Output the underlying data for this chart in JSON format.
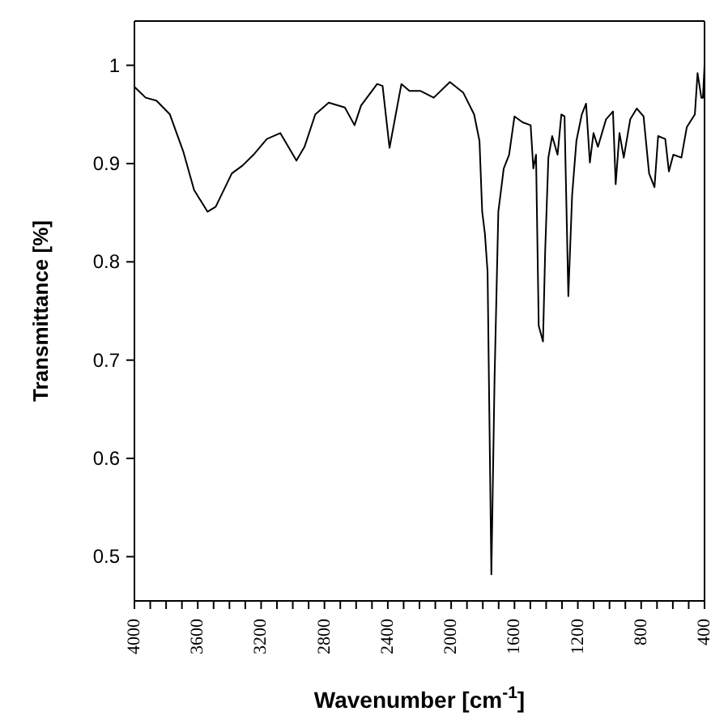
{
  "chart_data": {
    "type": "line",
    "xlabel": "Wavenumber [cm$^{-1}$]",
    "ylabel": "Transmittance [%]",
    "xlim": [
      4000,
      400
    ],
    "ylim": [
      0.455,
      1.045
    ],
    "xticks": [
      4000,
      {
        "value": 3900,
        "label": null
      },
      {
        "value": 3800,
        "label": null
      },
      {
        "value": 3700,
        "label": null
      },
      3600,
      {
        "value": 3500,
        "label": null
      },
      {
        "value": 3400,
        "label": null
      },
      {
        "value": 3300,
        "label": null
      },
      3200,
      {
        "value": 3100,
        "label": null
      },
      {
        "value": 3000,
        "label": null
      },
      {
        "value": 2900,
        "label": null
      },
      2800,
      {
        "value": 2700,
        "label": null
      },
      {
        "value": 2600,
        "label": null
      },
      {
        "value": 2500,
        "label": null
      },
      2400,
      {
        "value": 2300,
        "label": null
      },
      {
        "value": 2200,
        "label": null
      },
      {
        "value": 2100,
        "label": null
      },
      2000,
      {
        "value": 1900,
        "label": null
      },
      {
        "value": 1800,
        "label": null
      },
      {
        "value": 1700,
        "label": null
      },
      1600,
      {
        "value": 1500,
        "label": null
      },
      {
        "value": 1400,
        "label": null
      },
      {
        "value": 1300,
        "label": null
      },
      1200,
      {
        "value": 1100,
        "label": null
      },
      {
        "value": 1000,
        "label": null
      },
      {
        "value": 900,
        "label": null
      },
      800,
      {
        "value": 700,
        "label": null
      },
      {
        "value": 600,
        "label": null
      },
      {
        "value": 500,
        "label": null
      },
      400
    ],
    "yticks": [
      0.5,
      0.6,
      0.7,
      0.8,
      0.9,
      1
    ],
    "legend": false,
    "marker": "none",
    "line_style": "solid",
    "series": [
      {
        "color": "#000000",
        "x": [
          4000,
          3980,
          3929,
          3861,
          3776,
          3691,
          3623,
          3538,
          3487,
          3385,
          3317,
          3248,
          3164,
          3079,
          3028,
          2977,
          2926,
          2858,
          2773,
          2671,
          2610,
          2569,
          2467,
          2433,
          2389,
          2314,
          2263,
          2195,
          2110,
          2008,
          1923,
          1855,
          1821,
          1804,
          1787,
          1770,
          1746,
          1726,
          1702,
          1668,
          1634,
          1600,
          1549,
          1498,
          1481,
          1464,
          1447,
          1420,
          1406,
          1386,
          1362,
          1328,
          1304,
          1284,
          1260,
          1236,
          1209,
          1175,
          1148,
          1124,
          1101,
          1073,
          1022,
          978,
          961,
          937,
          910,
          869,
          828,
          785,
          750,
          716,
          693,
          648,
          625,
          597,
          546,
          512,
          461,
          444,
          420,
          410,
          400
        ],
        "values": [
          0.978,
          0.975,
          0.967,
          0.964,
          0.95,
          0.912,
          0.873,
          0.851,
          0.856,
          0.89,
          0.898,
          0.909,
          0.925,
          0.931,
          0.917,
          0.903,
          0.917,
          0.95,
          0.962,
          0.957,
          0.939,
          0.959,
          0.981,
          0.979,
          0.916,
          0.981,
          0.974,
          0.974,
          0.967,
          0.983,
          0.972,
          0.95,
          0.923,
          0.851,
          0.829,
          0.79,
          0.482,
          0.68,
          0.851,
          0.895,
          0.909,
          0.948,
          0.942,
          0.939,
          0.895,
          0.909,
          0.735,
          0.719,
          0.812,
          0.906,
          0.928,
          0.909,
          0.95,
          0.948,
          0.765,
          0.868,
          0.923,
          0.95,
          0.961,
          0.901,
          0.931,
          0.917,
          0.945,
          0.953,
          0.879,
          0.931,
          0.906,
          0.945,
          0.956,
          0.948,
          0.89,
          0.876,
          0.928,
          0.925,
          0.892,
          0.909,
          0.906,
          0.937,
          0.95,
          0.992,
          0.967,
          0.967,
          1.0
        ]
      }
    ]
  }
}
